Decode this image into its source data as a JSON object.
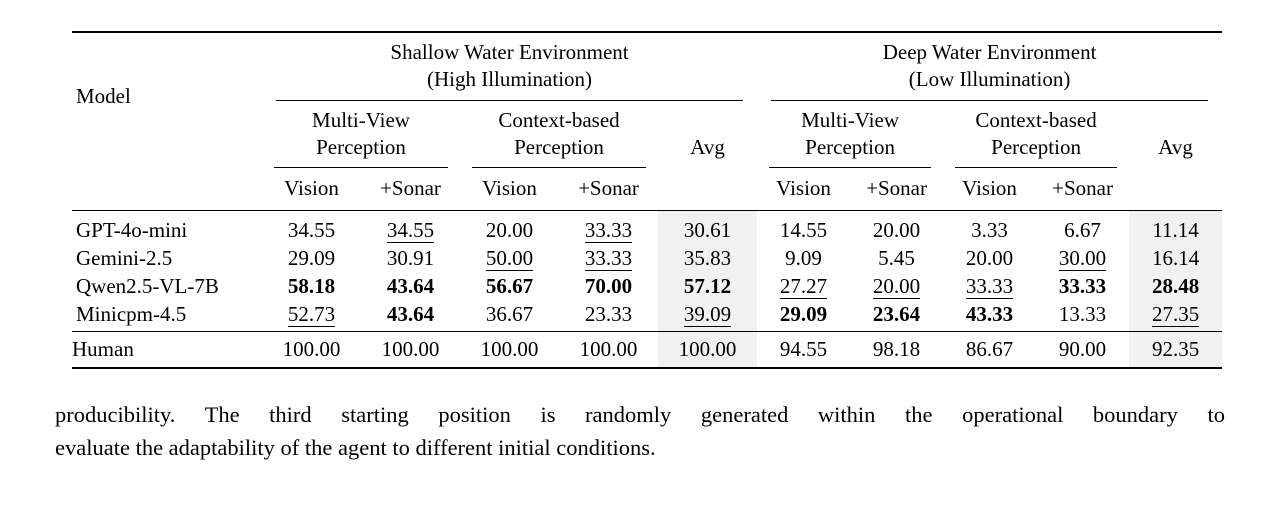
{
  "table": {
    "model_header": "Model",
    "avg_label": "Avg",
    "env_groups": [
      {
        "line1": "Shallow Water Environment",
        "line2": "(High Illumination)"
      },
      {
        "line1": "Deep Water Environment",
        "line2": "(Low Illumination)"
      }
    ],
    "perception_groups": [
      {
        "line1": "Multi-View",
        "line2": "Perception"
      },
      {
        "line1": "Context-based",
        "line2": "Perception"
      }
    ],
    "col_headers": {
      "vision": "Vision",
      "sonar": "+Sonar"
    },
    "rows": [
      {
        "model": "GPT-4o-mini",
        "cells": [
          {
            "v": "34.55",
            "cls": "plain"
          },
          {
            "v": "34.55",
            "cls": "u"
          },
          {
            "v": "20.00",
            "cls": "plain"
          },
          {
            "v": "33.33",
            "cls": "u"
          },
          {
            "v": "30.61",
            "cls": "plain"
          },
          {
            "v": "14.55",
            "cls": "plain"
          },
          {
            "v": "20.00",
            "cls": "plain"
          },
          {
            "v": "3.33",
            "cls": "plain"
          },
          {
            "v": "6.67",
            "cls": "plain"
          },
          {
            "v": "11.14",
            "cls": "plain"
          }
        ]
      },
      {
        "model": "Gemini-2.5",
        "cells": [
          {
            "v": "29.09",
            "cls": "plain"
          },
          {
            "v": "30.91",
            "cls": "plain"
          },
          {
            "v": "50.00",
            "cls": "u"
          },
          {
            "v": "33.33",
            "cls": "u"
          },
          {
            "v": "35.83",
            "cls": "plain"
          },
          {
            "v": "9.09",
            "cls": "plain"
          },
          {
            "v": "5.45",
            "cls": "plain"
          },
          {
            "v": "20.00",
            "cls": "plain"
          },
          {
            "v": "30.00",
            "cls": "u"
          },
          {
            "v": "16.14",
            "cls": "plain"
          }
        ]
      },
      {
        "model": "Qwen2.5-VL-7B",
        "cells": [
          {
            "v": "58.18",
            "cls": "b"
          },
          {
            "v": "43.64",
            "cls": "b"
          },
          {
            "v": "56.67",
            "cls": "b"
          },
          {
            "v": "70.00",
            "cls": "b"
          },
          {
            "v": "57.12",
            "cls": "b"
          },
          {
            "v": "27.27",
            "cls": "u"
          },
          {
            "v": "20.00",
            "cls": "u"
          },
          {
            "v": "33.33",
            "cls": "u"
          },
          {
            "v": "33.33",
            "cls": "b"
          },
          {
            "v": "28.48",
            "cls": "b"
          }
        ]
      },
      {
        "model": "Minicpm-4.5",
        "cells": [
          {
            "v": "52.73",
            "cls": "u"
          },
          {
            "v": "43.64",
            "cls": "b"
          },
          {
            "v": "36.67",
            "cls": "plain"
          },
          {
            "v": "23.33",
            "cls": "plain"
          },
          {
            "v": "39.09",
            "cls": "u"
          },
          {
            "v": "29.09",
            "cls": "b"
          },
          {
            "v": "23.64",
            "cls": "b"
          },
          {
            "v": "43.33",
            "cls": "b"
          },
          {
            "v": "13.33",
            "cls": "plain"
          },
          {
            "v": "27.35",
            "cls": "u"
          }
        ]
      }
    ],
    "human_row": {
      "model": "Human",
      "cells": [
        {
          "v": "100.00",
          "cls": "plain"
        },
        {
          "v": "100.00",
          "cls": "plain"
        },
        {
          "v": "100.00",
          "cls": "plain"
        },
        {
          "v": "100.00",
          "cls": "plain"
        },
        {
          "v": "100.00",
          "cls": "plain"
        },
        {
          "v": "94.55",
          "cls": "plain"
        },
        {
          "v": "98.18",
          "cls": "plain"
        },
        {
          "v": "86.67",
          "cls": "plain"
        },
        {
          "v": "90.00",
          "cls": "plain"
        },
        {
          "v": "92.35",
          "cls": "plain"
        }
      ]
    }
  },
  "caption": {
    "line1": "producibility. The third starting position is randomly generated within the operational boundary to",
    "line2": "evaluate the adaptability of the agent to different initial conditions."
  },
  "colors": {
    "avg_shade": "#f1f1f1",
    "rule": "#000000"
  }
}
